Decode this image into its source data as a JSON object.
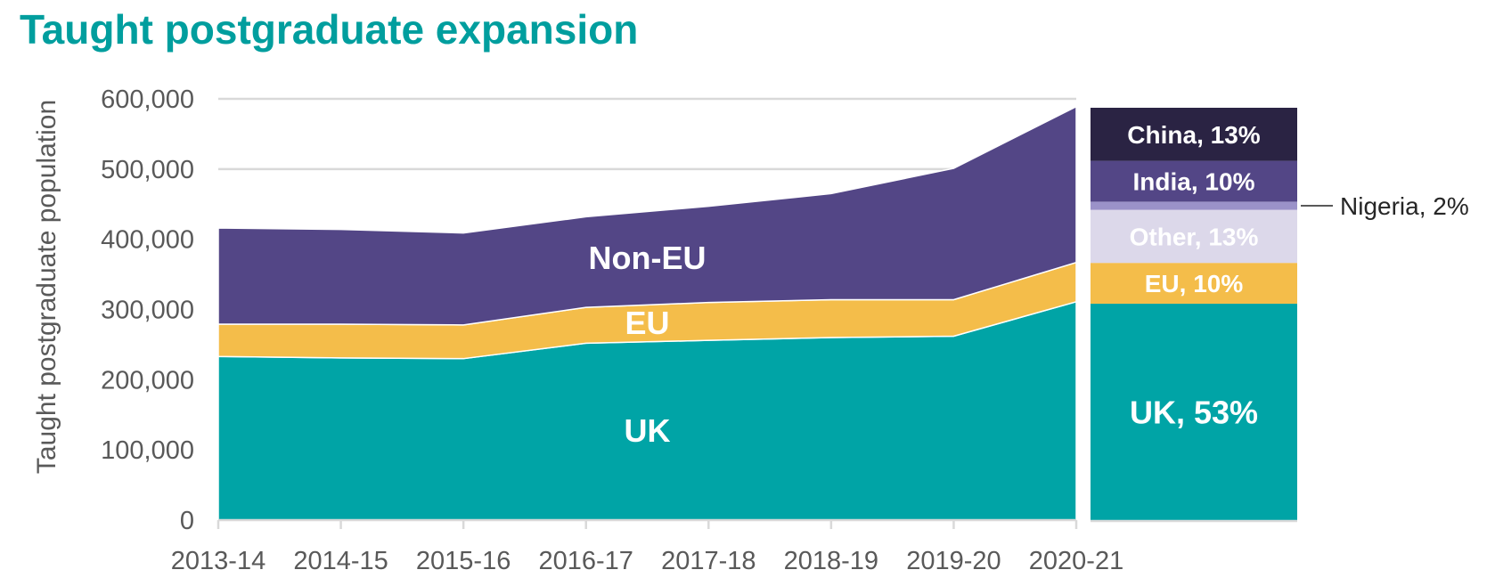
{
  "chart_data": [
    {
      "type": "area",
      "title": "Taught postgraduate expansion",
      "ylabel": "Taught postgraduate population",
      "ylim": [
        0,
        600000
      ],
      "yticks": [
        0,
        100000,
        200000,
        300000,
        400000,
        500000,
        600000
      ],
      "ytick_labels": [
        "0",
        "100,000",
        "200,000",
        "300,000",
        "400,000",
        "500,000",
        "600,000"
      ],
      "categories": [
        "2013-14",
        "2014-15",
        "2015-16",
        "2016-17",
        "2017-18",
        "2018-19",
        "2019-20",
        "2020-21"
      ],
      "stacked": true,
      "grid": true,
      "series": [
        {
          "name": "UK",
          "color": "#00a4a6",
          "values": [
            233000,
            231000,
            230000,
            252000,
            256000,
            260000,
            262000,
            311000
          ]
        },
        {
          "name": "EU",
          "color": "#f4bd4a",
          "values": [
            46000,
            48000,
            48000,
            51000,
            54000,
            54000,
            52000,
            56000
          ]
        },
        {
          "name": "Non-EU",
          "color": "#534686",
          "values": [
            137000,
            135000,
            131000,
            129000,
            137000,
            151000,
            187000,
            222000
          ]
        }
      ]
    },
    {
      "type": "bar",
      "stacked": true,
      "categories": [
        "2020-21"
      ],
      "segments": [
        {
          "label": "UK, 53%",
          "value": 53,
          "color": "#00a4a6"
        },
        {
          "label": "EU, 10%",
          "value": 10,
          "color": "#f4bd4a"
        },
        {
          "label": "Other, 13%",
          "value": 13,
          "color": "#dcd8ea"
        },
        {
          "label": "Nigeria, 2%",
          "value": 2,
          "color": "#9b92c9"
        },
        {
          "label": "India, 10%",
          "value": 10,
          "color": "#534686"
        },
        {
          "label": "China, 13%",
          "value": 13,
          "color": "#2a2343"
        }
      ]
    }
  ]
}
